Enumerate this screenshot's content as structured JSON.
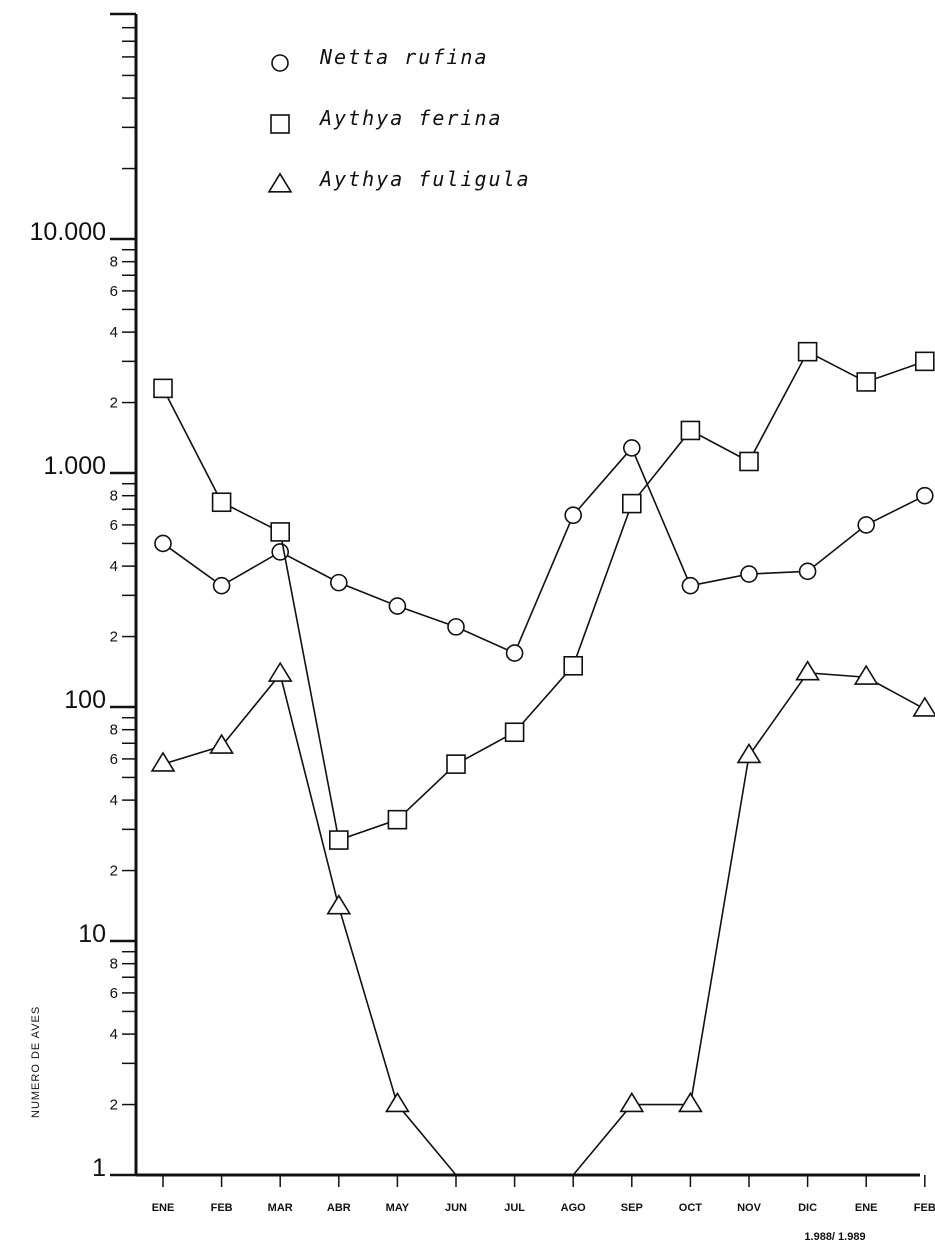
{
  "chart_data": {
    "type": "line",
    "ylabel": "NUMERO  DE  AVES",
    "yscale": "log",
    "ylim": [
      1,
      100000
    ],
    "y_major_ticks": [
      {
        "value": 1,
        "label": "1"
      },
      {
        "value": 10,
        "label": "10"
      },
      {
        "value": 100,
        "label": "100"
      },
      {
        "value": 1000,
        "label": "1.000"
      },
      {
        "value": 10000,
        "label": "10.000"
      }
    ],
    "y_minor_tick_labels": [
      "2",
      "4",
      "6",
      "8"
    ],
    "categories": [
      "ENE",
      "FEB",
      "MAR",
      "ABR",
      "MAY",
      "JUN",
      "JUL",
      "AGO",
      "SEP",
      "OCT",
      "NOV",
      "DIC",
      "ENE",
      "FEB"
    ],
    "x_sublabel": "1.988/ 1.989",
    "legend_position": "top-left",
    "series": [
      {
        "name": "Netta rufina",
        "marker": "circle",
        "values": [
          500,
          330,
          460,
          340,
          270,
          220,
          170,
          660,
          1280,
          330,
          370,
          380,
          600,
          800
        ]
      },
      {
        "name": "Aythya ferina",
        "marker": "square",
        "values": [
          2300,
          750,
          560,
          27,
          33,
          57,
          78,
          150,
          740,
          1520,
          1120,
          3300,
          2450,
          3000
        ]
      },
      {
        "name": "Aythya fuligula",
        "marker": "triangle",
        "values": [
          57,
          68,
          138,
          14,
          2,
          1,
          1,
          1,
          2,
          2,
          62,
          140,
          134,
          98
        ]
      }
    ]
  }
}
